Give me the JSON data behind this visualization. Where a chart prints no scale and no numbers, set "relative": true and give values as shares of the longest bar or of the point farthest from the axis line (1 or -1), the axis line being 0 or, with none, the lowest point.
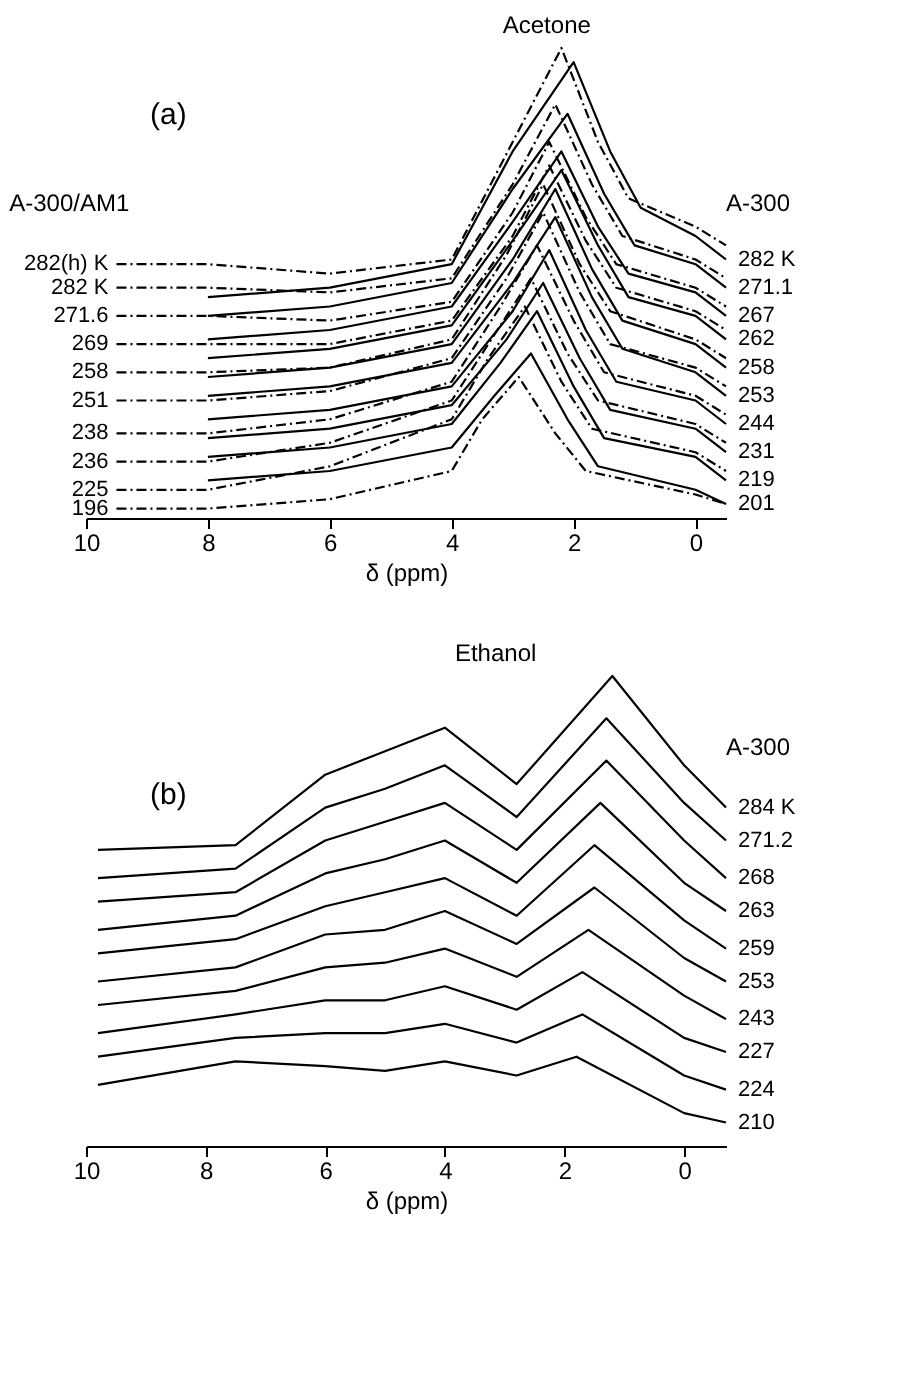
{
  "chart_data": [
    {
      "type": "line",
      "title": "Acetone",
      "xlabel": "δ (ppm)",
      "relative": true,
      "legend": false,
      "grid": false,
      "xlim": [
        10,
        -0.5
      ],
      "xticks": [
        10,
        8,
        6,
        4,
        2,
        0
      ],
      "annotations": [
        "(a)",
        "A-300/AM1",
        "A-300"
      ],
      "series": [
        {
          "name": "282 K",
          "color": "#000000",
          "line_style": "solid",
          "x": [
            8,
            6,
            4,
            3,
            2.0,
            1.4,
            0.9,
            0,
            -0.5
          ],
          "values": [
            0.47,
            0.49,
            0.54,
            0.78,
            0.97,
            0.78,
            0.66,
            0.6,
            0.55
          ]
        },
        {
          "name": "271.1",
          "color": "#000000",
          "line_style": "solid",
          "x": [
            8,
            6,
            4,
            3,
            2.1,
            1.5,
            1.0,
            0,
            -0.5
          ],
          "values": [
            0.43,
            0.45,
            0.5,
            0.7,
            0.86,
            0.69,
            0.58,
            0.54,
            0.49
          ]
        },
        {
          "name": "267",
          "color": "#000000",
          "line_style": "solid",
          "x": [
            8,
            6,
            4,
            3,
            2.2,
            1.6,
            1.1,
            0,
            -0.5
          ],
          "values": [
            0.38,
            0.4,
            0.45,
            0.63,
            0.78,
            0.62,
            0.52,
            0.48,
            0.43
          ]
        },
        {
          "name": "262",
          "color": "#000000",
          "line_style": "solid",
          "x": [
            8,
            6,
            4,
            3,
            2.2,
            1.6,
            1.1,
            0,
            -0.5
          ],
          "values": [
            0.34,
            0.36,
            0.41,
            0.59,
            0.74,
            0.58,
            0.47,
            0.43,
            0.38
          ]
        },
        {
          "name": "258",
          "color": "#000000",
          "line_style": "solid",
          "x": [
            8,
            6,
            4,
            3,
            2.3,
            1.7,
            1.2,
            0,
            -0.5
          ],
          "values": [
            0.3,
            0.32,
            0.37,
            0.55,
            0.7,
            0.53,
            0.42,
            0.37,
            0.32
          ]
        },
        {
          "name": "253",
          "color": "#000000",
          "line_style": "solid",
          "x": [
            8,
            6,
            4,
            3,
            2.3,
            1.7,
            1.2,
            0,
            -0.5
          ],
          "values": [
            0.26,
            0.28,
            0.33,
            0.5,
            0.64,
            0.47,
            0.36,
            0.31,
            0.26
          ]
        },
        {
          "name": "244",
          "color": "#000000",
          "line_style": "solid",
          "x": [
            8,
            6,
            4,
            3,
            2.4,
            1.8,
            1.3,
            0,
            -0.5
          ],
          "values": [
            0.21,
            0.23,
            0.28,
            0.44,
            0.57,
            0.4,
            0.29,
            0.25,
            0.2
          ]
        },
        {
          "name": "231",
          "color": "#000000",
          "line_style": "solid",
          "x": [
            8,
            6,
            4,
            3.1,
            2.5,
            1.9,
            1.4,
            0,
            -0.5
          ],
          "values": [
            0.17,
            0.19,
            0.24,
            0.38,
            0.5,
            0.34,
            0.23,
            0.19,
            0.14
          ]
        },
        {
          "name": "219",
          "color": "#000000",
          "line_style": "solid",
          "x": [
            8,
            6,
            4,
            3.2,
            2.6,
            2.0,
            1.5,
            0,
            -0.5
          ],
          "values": [
            0.13,
            0.15,
            0.2,
            0.33,
            0.44,
            0.28,
            0.17,
            0.13,
            0.08
          ]
        },
        {
          "name": "201",
          "color": "#000000",
          "line_style": "solid",
          "x": [
            8,
            6,
            4,
            3.3,
            2.7,
            2.1,
            1.6,
            0,
            -0.5
          ],
          "values": [
            0.08,
            0.1,
            0.15,
            0.26,
            0.35,
            0.21,
            0.11,
            0.06,
            0.03
          ]
        },
        {
          "name": "282(h) K",
          "color": "#000000",
          "line_style": "dashed",
          "x": [
            9.5,
            8,
            6,
            4,
            3,
            2.2,
            1.6,
            1.1,
            0,
            -0.5
          ],
          "values": [
            0.54,
            0.54,
            0.52,
            0.55,
            0.8,
            1.0,
            0.8,
            0.68,
            0.62,
            0.58
          ]
        },
        {
          "name": "282 K",
          "color": "#000000",
          "line_style": "dashed",
          "x": [
            9.5,
            8,
            6,
            4,
            3,
            2.3,
            1.7,
            1.2,
            0,
            -0.5
          ],
          "values": [
            0.49,
            0.49,
            0.48,
            0.51,
            0.71,
            0.88,
            0.71,
            0.6,
            0.55,
            0.51
          ]
        },
        {
          "name": "271.6",
          "color": "#000000",
          "line_style": "dashed",
          "x": [
            9.5,
            8,
            6,
            4,
            3,
            2.4,
            1.8,
            1.3,
            0,
            -0.5
          ],
          "values": [
            0.43,
            0.43,
            0.42,
            0.46,
            0.65,
            0.8,
            0.64,
            0.54,
            0.49,
            0.45
          ]
        },
        {
          "name": "269",
          "color": "#000000",
          "line_style": "dashed",
          "x": [
            9.5,
            8,
            6,
            4,
            3,
            2.4,
            1.8,
            1.3,
            0,
            -0.5
          ],
          "values": [
            0.37,
            0.37,
            0.37,
            0.42,
            0.6,
            0.75,
            0.59,
            0.49,
            0.44,
            0.4
          ]
        },
        {
          "name": "258",
          "color": "#000000",
          "line_style": "dashed",
          "x": [
            9.5,
            8,
            6,
            4,
            3.1,
            2.5,
            1.9,
            1.4,
            0,
            -0.5
          ],
          "values": [
            0.31,
            0.31,
            0.32,
            0.38,
            0.56,
            0.71,
            0.54,
            0.44,
            0.38,
            0.34
          ]
        },
        {
          "name": "251",
          "color": "#000000",
          "line_style": "dashed",
          "x": [
            9.5,
            8,
            6,
            4,
            3.1,
            2.5,
            1.9,
            1.4,
            0,
            -0.5
          ],
          "values": [
            0.25,
            0.25,
            0.27,
            0.34,
            0.51,
            0.65,
            0.48,
            0.37,
            0.32,
            0.28
          ]
        },
        {
          "name": "238",
          "color": "#000000",
          "line_style": "dashed",
          "x": [
            9.5,
            8,
            6,
            4,
            3.2,
            2.6,
            2.0,
            1.5,
            0,
            -0.5
          ],
          "values": [
            0.18,
            0.18,
            0.21,
            0.29,
            0.45,
            0.58,
            0.42,
            0.31,
            0.26,
            0.22
          ]
        },
        {
          "name": "236",
          "color": "#000000",
          "line_style": "dashed",
          "x": [
            9.5,
            8,
            6,
            4,
            3.3,
            2.7,
            2.1,
            1.6,
            0,
            -0.5
          ],
          "values": [
            0.12,
            0.12,
            0.16,
            0.25,
            0.39,
            0.51,
            0.35,
            0.25,
            0.2,
            0.16
          ]
        },
        {
          "name": "225",
          "color": "#000000",
          "line_style": "dashed",
          "x": [
            9.5,
            8,
            6,
            4,
            3.4,
            2.8,
            2.2,
            1.7,
            0,
            -0.5
          ],
          "values": [
            0.06,
            0.06,
            0.11,
            0.21,
            0.34,
            0.45,
            0.29,
            0.19,
            0.14,
            0.1
          ]
        },
        {
          "name": "196",
          "color": "#000000",
          "line_style": "dashed",
          "x": [
            9.5,
            8,
            6,
            4,
            3.5,
            2.9,
            2.3,
            1.8,
            0,
            -0.5
          ],
          "values": [
            0.02,
            0.02,
            0.04,
            0.1,
            0.21,
            0.3,
            0.18,
            0.1,
            0.05,
            0.03
          ]
        }
      ]
    },
    {
      "type": "line",
      "title": "Ethanol",
      "xlabel": "δ (ppm)",
      "relative": true,
      "legend": false,
      "grid": false,
      "xlim": [
        10,
        -0.7
      ],
      "xticks": [
        10,
        8,
        6,
        4,
        2,
        0
      ],
      "annotations": [
        "(b)",
        "A-300"
      ],
      "series": [
        {
          "name": "284 K",
          "color": "#000000",
          "line_style": "solid",
          "x": [
            9.8,
            7.5,
            6,
            5,
            4,
            2.8,
            1.2,
            0,
            -0.7
          ],
          "values": [
            0.63,
            0.64,
            0.79,
            0.84,
            0.89,
            0.77,
            1.0,
            0.81,
            0.72
          ]
        },
        {
          "name": "271.2",
          "color": "#000000",
          "line_style": "solid",
          "x": [
            9.8,
            7.5,
            6,
            5,
            4,
            2.8,
            1.3,
            0,
            -0.7
          ],
          "values": [
            0.57,
            0.59,
            0.72,
            0.76,
            0.81,
            0.7,
            0.91,
            0.73,
            0.65
          ]
        },
        {
          "name": "268",
          "color": "#000000",
          "line_style": "solid",
          "x": [
            9.8,
            7.5,
            6,
            5,
            4,
            2.8,
            1.3,
            0,
            -0.7
          ],
          "values": [
            0.52,
            0.54,
            0.65,
            0.69,
            0.73,
            0.63,
            0.82,
            0.65,
            0.57
          ]
        },
        {
          "name": "263",
          "color": "#000000",
          "line_style": "solid",
          "x": [
            9.8,
            7.5,
            6,
            5,
            4,
            2.8,
            1.4,
            0,
            -0.7
          ],
          "values": [
            0.46,
            0.49,
            0.58,
            0.61,
            0.65,
            0.56,
            0.73,
            0.56,
            0.5
          ]
        },
        {
          "name": "259",
          "color": "#000000",
          "line_style": "solid",
          "x": [
            9.8,
            7.5,
            6,
            5,
            4,
            2.8,
            1.5,
            0,
            -0.7
          ],
          "values": [
            0.41,
            0.44,
            0.51,
            0.54,
            0.57,
            0.49,
            0.64,
            0.48,
            0.42
          ]
        },
        {
          "name": "253",
          "color": "#000000",
          "line_style": "solid",
          "x": [
            9.8,
            7.5,
            6,
            5,
            4,
            2.8,
            1.5,
            0,
            -0.7
          ],
          "values": [
            0.35,
            0.38,
            0.45,
            0.46,
            0.5,
            0.43,
            0.55,
            0.4,
            0.35
          ]
        },
        {
          "name": "243",
          "color": "#000000",
          "line_style": "solid",
          "x": [
            9.8,
            7.5,
            6,
            5,
            4,
            2.8,
            1.6,
            0,
            -0.7
          ],
          "values": [
            0.3,
            0.33,
            0.38,
            0.39,
            0.42,
            0.36,
            0.46,
            0.32,
            0.27
          ]
        },
        {
          "name": "227",
          "color": "#000000",
          "line_style": "solid",
          "x": [
            9.8,
            7.5,
            6,
            5,
            4,
            2.8,
            1.7,
            0,
            -0.7
          ],
          "values": [
            0.24,
            0.28,
            0.31,
            0.31,
            0.34,
            0.29,
            0.37,
            0.23,
            0.2
          ]
        },
        {
          "name": "224",
          "color": "#000000",
          "line_style": "solid",
          "x": [
            9.8,
            7.5,
            6,
            5,
            4,
            2.8,
            1.7,
            0,
            -0.7
          ],
          "values": [
            0.19,
            0.23,
            0.24,
            0.24,
            0.26,
            0.22,
            0.28,
            0.15,
            0.12
          ]
        },
        {
          "name": "210",
          "color": "#000000",
          "line_style": "solid",
          "x": [
            9.8,
            7.5,
            6,
            5,
            4,
            2.8,
            1.8,
            0,
            -0.7
          ],
          "values": [
            0.13,
            0.18,
            0.17,
            0.16,
            0.18,
            0.15,
            0.19,
            0.07,
            0.05
          ]
        }
      ]
    }
  ]
}
